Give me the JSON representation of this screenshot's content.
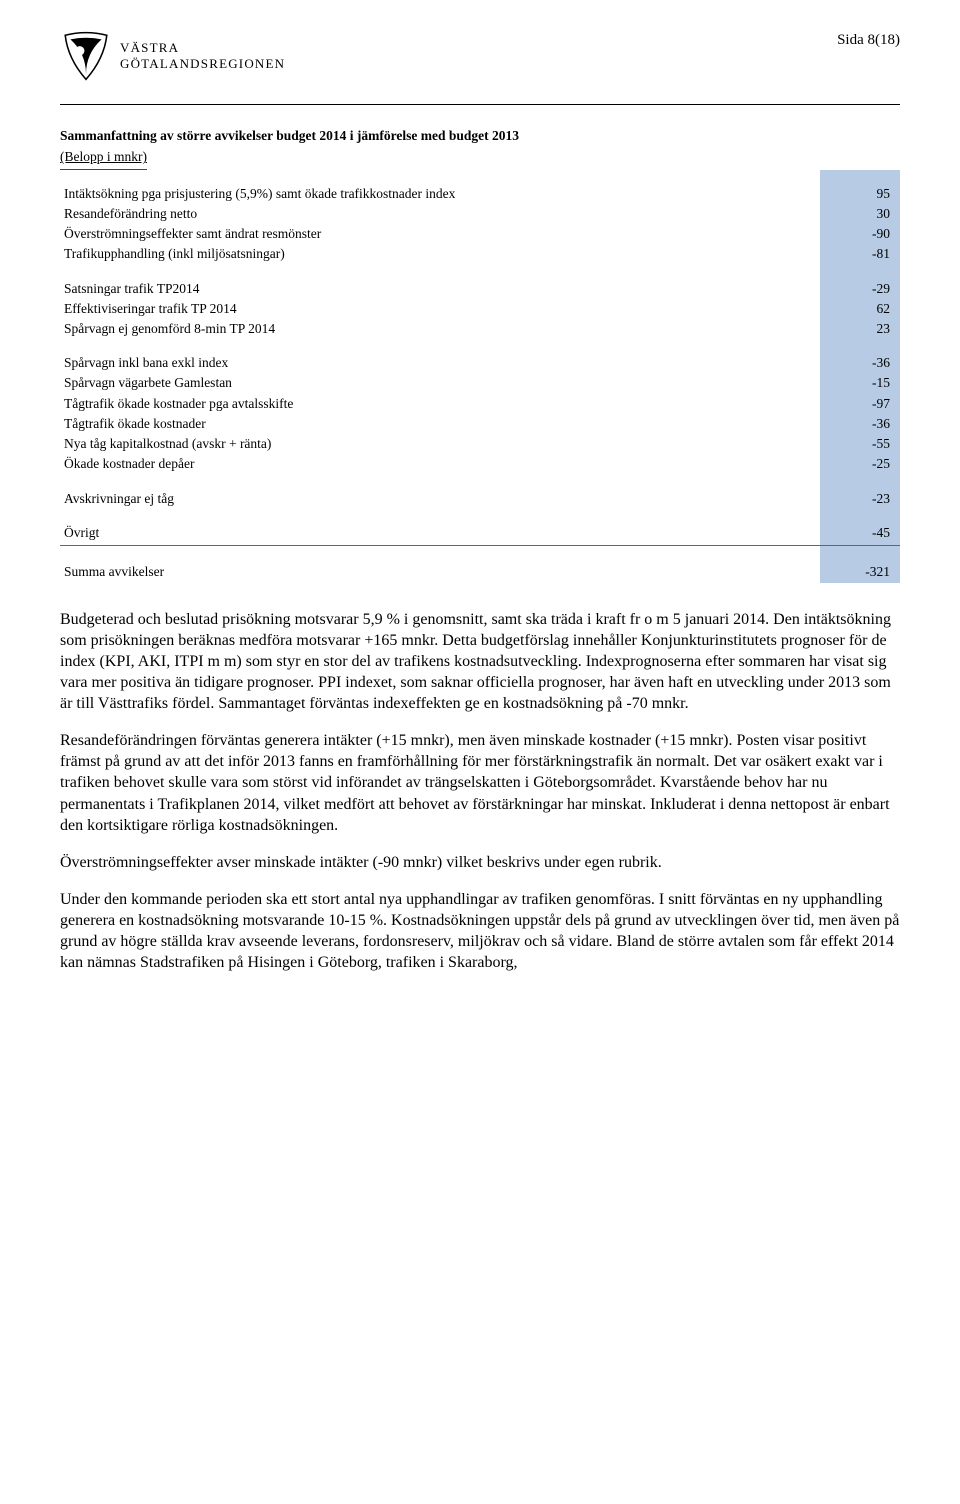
{
  "page": {
    "number_label": "Sida 8(18)",
    "logo": {
      "line1": "VÄSTRA",
      "line2": "GÖTALANDSREGIONEN"
    }
  },
  "deviation_table": {
    "type": "table",
    "title": "Sammanfattning av större avvikelser budget 2014 i jämförelse med budget 2013",
    "subtitle": "(Belopp i mnkr)",
    "value_column_bg": "#b7cce4",
    "text_color": "#000000",
    "font_size_pt": 10,
    "groups": [
      {
        "rows": [
          {
            "label": "Intäktsökning pga prisjustering (5,9%) samt ökade trafikkostnader index",
            "value": "95"
          },
          {
            "label": "Resandeförändring netto",
            "value": "30"
          },
          {
            "label": "Överströmningseffekter samt ändrat resmönster",
            "value": "-90"
          },
          {
            "label": "Trafikupphandling (inkl miljösatsningar)",
            "value": "-81"
          }
        ]
      },
      {
        "rows": [
          {
            "label": "Satsningar trafik TP2014",
            "value": "-29"
          },
          {
            "label": "Effektiviseringar trafik TP 2014",
            "value": "62"
          },
          {
            "label": "Spårvagn ej genomförd 8-min TP 2014",
            "value": "23"
          }
        ]
      },
      {
        "rows": [
          {
            "label": "Spårvagn inkl bana exkl index",
            "value": "-36"
          },
          {
            "label": "Spårvagn vägarbete Gamlestan",
            "value": "-15"
          },
          {
            "label": "Tågtrafik ökade kostnader pga avtalsskifte",
            "value": "-97"
          },
          {
            "label": "Tågtrafik ökade kostnader",
            "value": "-36"
          },
          {
            "label": "Nya tåg kapitalkostnad (avskr + ränta)",
            "value": "-55"
          },
          {
            "label": "Ökade kostnader depåer",
            "value": "-25"
          }
        ]
      },
      {
        "rows": [
          {
            "label": "Avskrivningar ej tåg",
            "value": "-23"
          }
        ]
      },
      {
        "rows": [
          {
            "label": "Övrigt",
            "value": "-45"
          }
        ],
        "rule_after": true
      }
    ],
    "sum": {
      "label": "Summa avvikelser",
      "value": "-321"
    }
  },
  "paragraphs": [
    "Budgeterad och beslutad prisökning motsvarar 5,9 % i genomsnitt, samt ska träda i kraft fr o m 5 januari 2014. Den intäktsökning som prisökningen beräknas medföra motsvarar +165 mnkr. Detta budgetförslag innehåller Konjunkturinstitutets prognoser för de index (KPI, AKI, ITPI m m) som styr en stor del av trafikens kostnadsutveckling. Indexprognoserna efter sommaren har visat sig vara mer positiva än tidigare prognoser. PPI indexet, som saknar officiella prognoser, har även haft en utveckling under 2013 som är till Västtrafiks fördel. Sammantaget förväntas indexeffekten ge en kostnadsökning på -70 mnkr.",
    "Resandeförändringen förväntas generera intäkter (+15 mnkr), men även minskade kostnader (+15 mnkr). Posten visar positivt främst på grund av att det inför 2013 fanns en framförhållning för mer förstärkningstrafik än normalt. Det var osäkert exakt var i trafiken behovet skulle vara som störst vid införandet av trängselskatten i Göteborgsområdet. Kvarstående behov har nu permanentats i Trafikplanen 2014, vilket medfört att behovet av förstärkningar har minskat. Inkluderat i denna nettopost är enbart den kortsiktigare rörliga kostnadsökningen.",
    "Överströmningseffekter avser minskade intäkter (-90 mnkr) vilket beskrivs under egen rubrik.",
    "Under den kommande perioden ska ett stort antal nya upphandlingar av trafiken genomföras. I snitt förväntas en ny upphandling generera en kostnadsökning motsvarande 10-15 %. Kostnadsökningen uppstår dels på grund av utvecklingen över tid, men även på grund av högre ställda krav avseende leverans, fordonsreserv, miljökrav och så vidare. Bland de större avtalen som får effekt 2014 kan nämnas Stadstrafiken på Hisingen i Göteborg, trafiken i Skaraborg,"
  ]
}
